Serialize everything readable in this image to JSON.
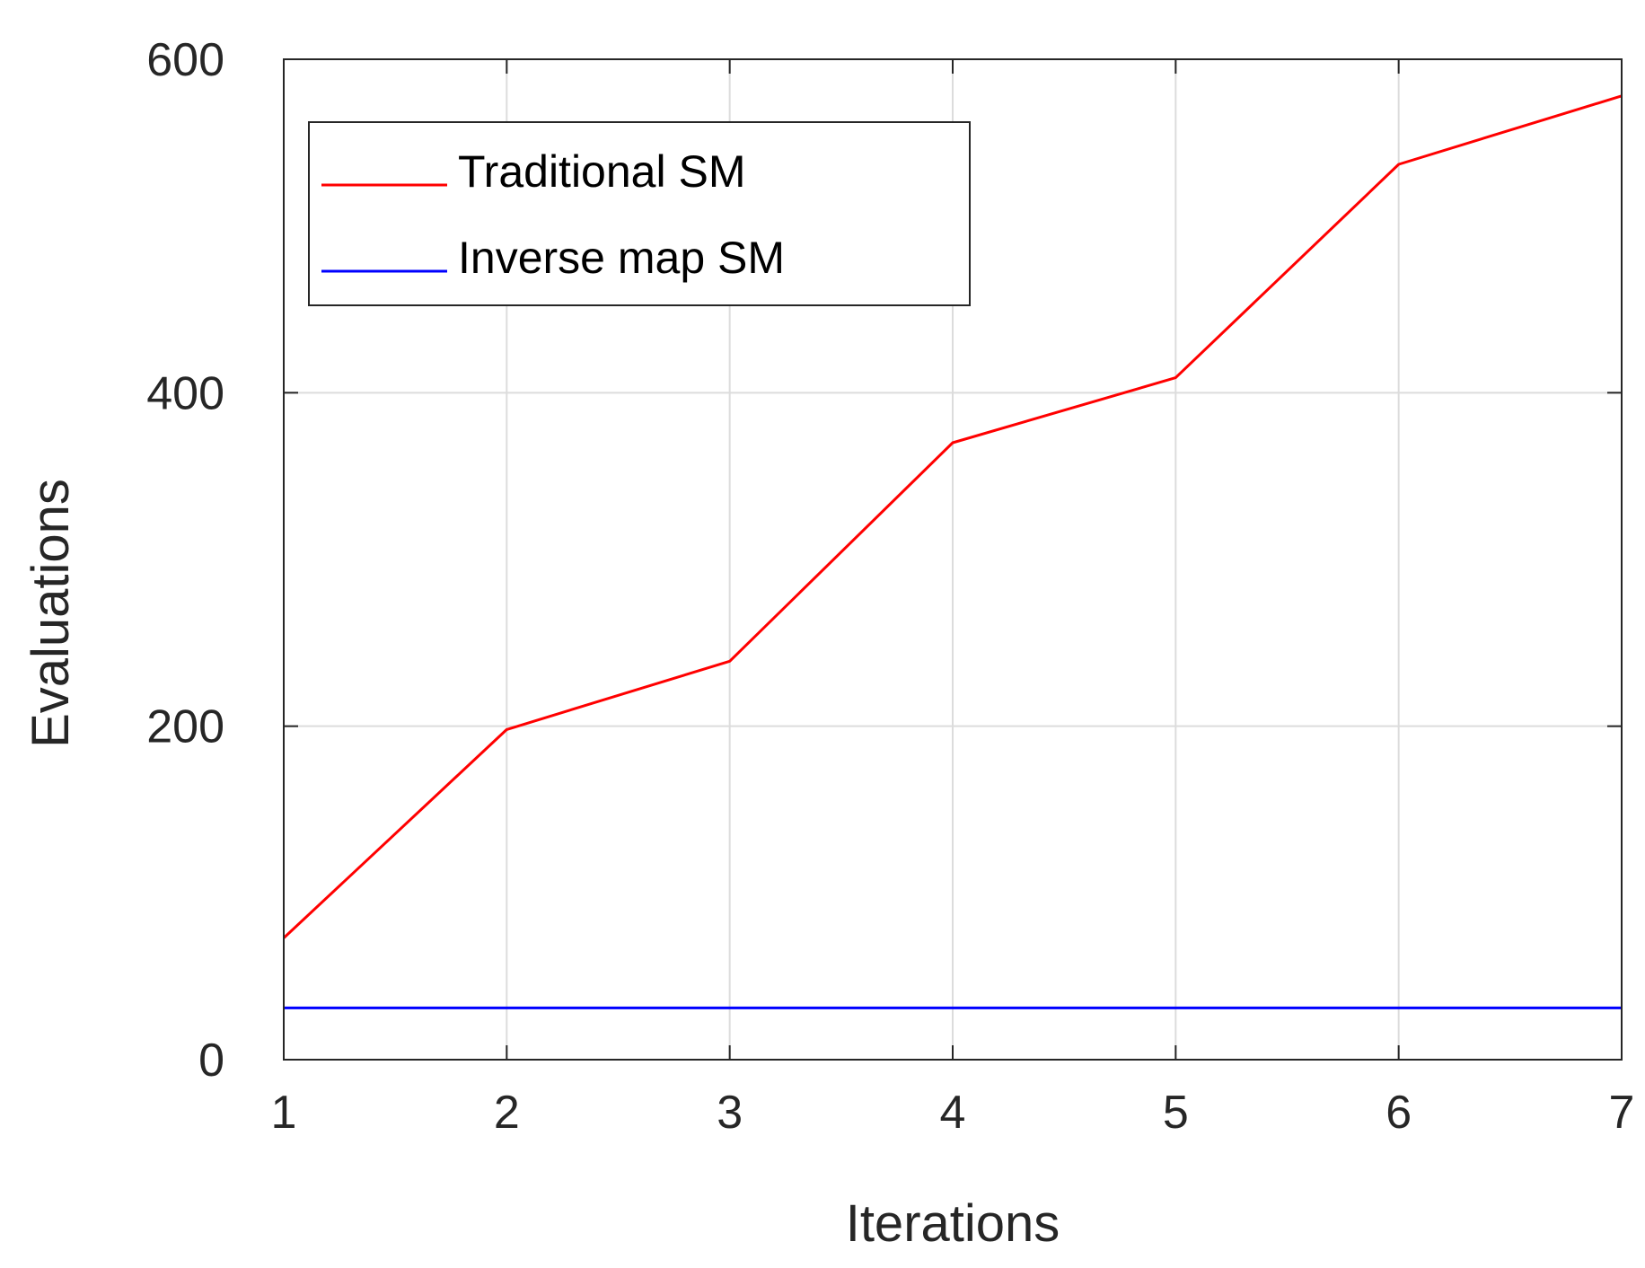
{
  "chart_data": {
    "type": "line",
    "title": "",
    "xlabel": "Iterations",
    "ylabel": "Evaluations",
    "x": [
      1,
      2,
      3,
      4,
      5,
      6,
      7
    ],
    "xlim": [
      1,
      7
    ],
    "ylim": [
      0,
      600
    ],
    "xticks": [
      1,
      2,
      3,
      4,
      5,
      6,
      7
    ],
    "yticks": [
      0,
      200,
      400,
      600
    ],
    "grid": true,
    "legend_position": "top-left",
    "series": [
      {
        "name": "Traditional SM",
        "color": "#ff0000",
        "values": [
          73,
          198,
          239,
          370,
          409,
          537,
          578
        ]
      },
      {
        "name": "Inverse map SM",
        "color": "#0000ff",
        "values": [
          31,
          31,
          31,
          31,
          31,
          31,
          31
        ]
      }
    ]
  }
}
